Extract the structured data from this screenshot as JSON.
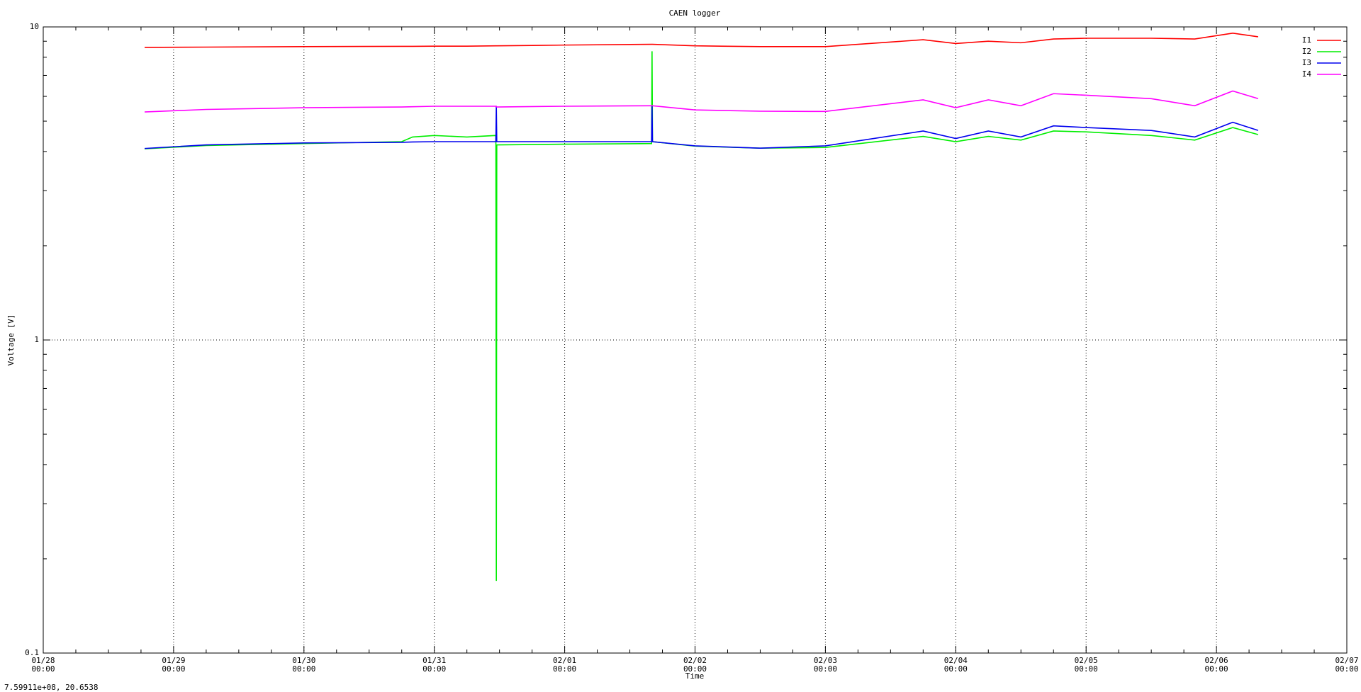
{
  "chart_data": {
    "type": "line",
    "title": "CAEN logger",
    "xlabel": "Time",
    "ylabel": "Voltage [V]",
    "status": "7.59911e+08,  20.6538",
    "logscale_y": true,
    "grid": true,
    "legend": "top-right",
    "xlim": [
      "01/28 00:00",
      "02/07 00:00"
    ],
    "xticks": [
      {
        "value": "01/28 00:00",
        "label": "01/28\n00:00"
      },
      {
        "value": "01/29 00:00",
        "label": "01/29\n00:00"
      },
      {
        "value": "01/30 00:00",
        "label": "01/30\n00:00"
      },
      {
        "value": "01/31 00:00",
        "label": "01/31\n00:00"
      },
      {
        "value": "02/01 00:00",
        "label": "02/01\n00:00"
      },
      {
        "value": "02/02 00:00",
        "label": "02/02\n00:00"
      },
      {
        "value": "02/03 00:00",
        "label": "02/03\n00:00"
      },
      {
        "value": "02/04 00:00",
        "label": "02/04\n00:00"
      },
      {
        "value": "02/05 00:00",
        "label": "02/05\n00:00"
      },
      {
        "value": "02/06 00:00",
        "label": "02/06\n00:00"
      },
      {
        "value": "02/07 00:00",
        "label": "02/07\n00:00"
      }
    ],
    "ylim": [
      0.1,
      10
    ],
    "yticks": [
      0.1,
      1,
      10
    ],
    "x": [
      "01/28 18:40",
      "01/29 06:00",
      "01/30 00:00",
      "01/30 18:00",
      "01/30 20:00",
      "01/31 00:00",
      "01/31 06:00",
      "01/31 11:20",
      "01/31 11:25",
      "01/31 11:30",
      "02/01 00:00",
      "02/01 16:00",
      "02/01 16:05",
      "02/01 16:10",
      "02/02 00:00",
      "02/02 12:00",
      "02/03 00:00",
      "02/03 18:00",
      "02/04 00:00",
      "02/04 06:00",
      "02/04 12:00",
      "02/04 18:00",
      "02/05 00:00",
      "02/05 12:00",
      "02/05 20:00",
      "02/06 03:00",
      "02/06 07:40"
    ],
    "series": [
      {
        "name": "I1",
        "color": "#ff0000",
        "values": [
          8.6,
          8.62,
          8.65,
          8.67,
          8.67,
          8.68,
          8.68,
          8.7,
          8.7,
          8.7,
          8.75,
          8.8,
          8.8,
          8.8,
          8.7,
          8.65,
          8.65,
          9.1,
          8.85,
          9.0,
          8.9,
          9.15,
          9.2,
          9.2,
          9.15,
          9.55,
          9.3
        ]
      },
      {
        "name": "I2",
        "color": "#00ee00",
        "values": [
          4.08,
          4.18,
          4.24,
          4.3,
          4.45,
          4.5,
          4.45,
          4.5,
          0.17,
          4.2,
          4.22,
          4.24,
          8.36,
          4.3,
          4.16,
          4.1,
          4.12,
          4.47,
          4.3,
          4.47,
          4.35,
          4.65,
          4.62,
          4.5,
          4.35,
          4.77,
          4.53
        ]
      },
      {
        "name": "I3",
        "color": "#0000ee",
        "values": [
          4.09,
          4.2,
          4.26,
          4.28,
          4.29,
          4.3,
          4.3,
          4.3,
          5.58,
          4.3,
          4.3,
          4.3,
          5.58,
          4.3,
          4.17,
          4.1,
          4.17,
          4.65,
          4.4,
          4.65,
          4.45,
          4.83,
          4.77,
          4.67,
          4.45,
          4.96,
          4.67
        ]
      },
      {
        "name": "I4",
        "color": "#ff00ff",
        "values": [
          5.35,
          5.45,
          5.52,
          5.55,
          5.56,
          5.58,
          5.58,
          5.58,
          5.58,
          5.55,
          5.58,
          5.6,
          5.6,
          5.6,
          5.43,
          5.38,
          5.37,
          5.85,
          5.52,
          5.85,
          5.6,
          6.12,
          6.05,
          5.9,
          5.6,
          6.24,
          5.9
        ]
      }
    ]
  }
}
